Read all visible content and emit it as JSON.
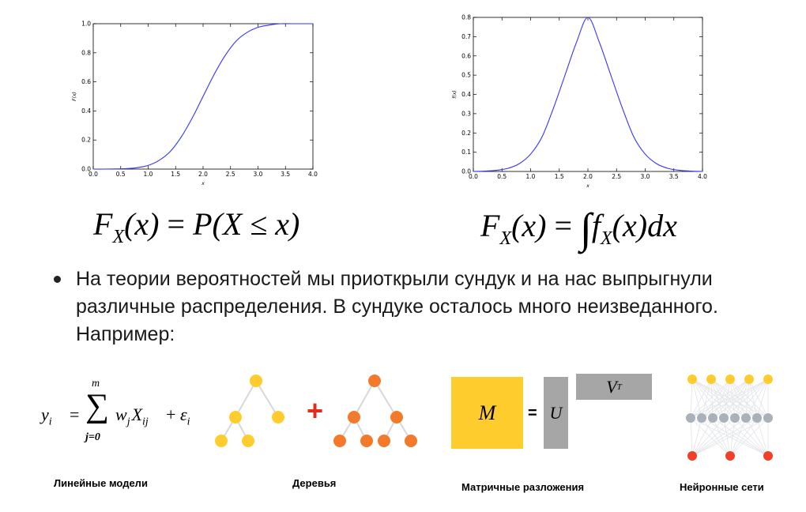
{
  "chart_data": [
    {
      "type": "line",
      "xlabel": "x",
      "ylabel": "F(x)",
      "xlim": [
        0.0,
        4.0
      ],
      "ylim": [
        0.0,
        1.0
      ],
      "xticks": [
        "0.0",
        "0.5",
        "1.0",
        "1.5",
        "2.0",
        "2.5",
        "3.0",
        "3.5",
        "4.0"
      ],
      "yticks": [
        "0.0",
        "0.2",
        "0.4",
        "0.6",
        "0.8",
        "1.0"
      ],
      "series": [
        {
          "color": "#3333ff",
          "x": [
            0.0,
            0.2,
            0.4,
            0.6,
            0.8,
            1.0,
            1.2,
            1.4,
            1.6,
            1.8,
            2.0,
            2.2,
            2.4,
            2.6,
            2.8,
            3.0,
            3.2,
            3.4,
            3.6,
            3.8,
            4.0
          ],
          "y": [
            0.0,
            0.0,
            0.001,
            0.003,
            0.01,
            0.025,
            0.06,
            0.12,
            0.22,
            0.35,
            0.5,
            0.65,
            0.78,
            0.88,
            0.94,
            0.975,
            0.99,
            1.0,
            1.0,
            1.0,
            1.0
          ]
        }
      ]
    },
    {
      "type": "line",
      "xlabel": "x",
      "ylabel": "f(x)",
      "xlim": [
        0.0,
        4.0
      ],
      "ylim": [
        0.0,
        0.8
      ],
      "xticks": [
        "0.0",
        "0.5",
        "1.0",
        "1.5",
        "2.0",
        "2.5",
        "3.0",
        "3.5",
        "4.0"
      ],
      "yticks": [
        "0.0",
        "0.1",
        "0.2",
        "0.3",
        "0.4",
        "0.5",
        "0.6",
        "0.7",
        "0.8"
      ],
      "series": [
        {
          "color": "#3333ff",
          "x": [
            0.0,
            0.2,
            0.4,
            0.6,
            0.8,
            1.0,
            1.2,
            1.4,
            1.6,
            1.8,
            2.0,
            2.2,
            2.4,
            2.6,
            2.8,
            3.0,
            3.2,
            3.4,
            3.6,
            3.8,
            4.0
          ],
          "y": [
            0.0,
            0.002,
            0.006,
            0.016,
            0.04,
            0.09,
            0.18,
            0.33,
            0.5,
            0.67,
            0.8,
            0.67,
            0.5,
            0.33,
            0.18,
            0.09,
            0.04,
            0.016,
            0.006,
            0.002,
            0.0
          ]
        }
      ]
    }
  ],
  "formulas": {
    "cdf": {
      "lhs": "F",
      "sub": "X",
      "arg": "(x)",
      "eq": " = ",
      "rhs": "P(X ≤ x)"
    },
    "pdf": {
      "lhs": "F",
      "sub": "X",
      "arg": "(x)",
      "eq": " = ",
      "int": "∫",
      "f": "f",
      "fsub": "X",
      "rest": "(x)dx"
    }
  },
  "bullet": "На теории вероятностей мы приоткрыли сундук и на нас выпрыгнули различные распределения. В сундуке осталось много неизведанного. Например:",
  "models": {
    "linear": {
      "caption": "Линейные модели",
      "lhs": "y",
      "lhs_sub": "i",
      "eq": "=",
      "sum": "∑",
      "sum_top": "m",
      "sum_bottom": "j=0",
      "w": "w",
      "w_sub": "j",
      "x": "X",
      "x_sub": "ij",
      "plus": "+",
      "eps": "ε",
      "eps_sub": "i"
    },
    "trees": {
      "caption": "Деревья",
      "plus": "+"
    },
    "matrix": {
      "caption": "Матричные разложения",
      "m": "M",
      "eq": "=",
      "u": "U",
      "vt": "V",
      "vt_sup": "T"
    },
    "nn": {
      "caption": "Нейронные сети"
    }
  },
  "colors": {
    "line": "#3333ff",
    "tree_yellow": "#ffcc2e",
    "tree_orange": "#f27a2a",
    "plus_red": "#e02d1f",
    "matrix_yellow": "#ffcc2e",
    "matrix_grey": "#a6a6a6",
    "nn_yellow": "#ffcc2e",
    "nn_grey": "#a9b1bb",
    "nn_red": "#f0402a"
  }
}
